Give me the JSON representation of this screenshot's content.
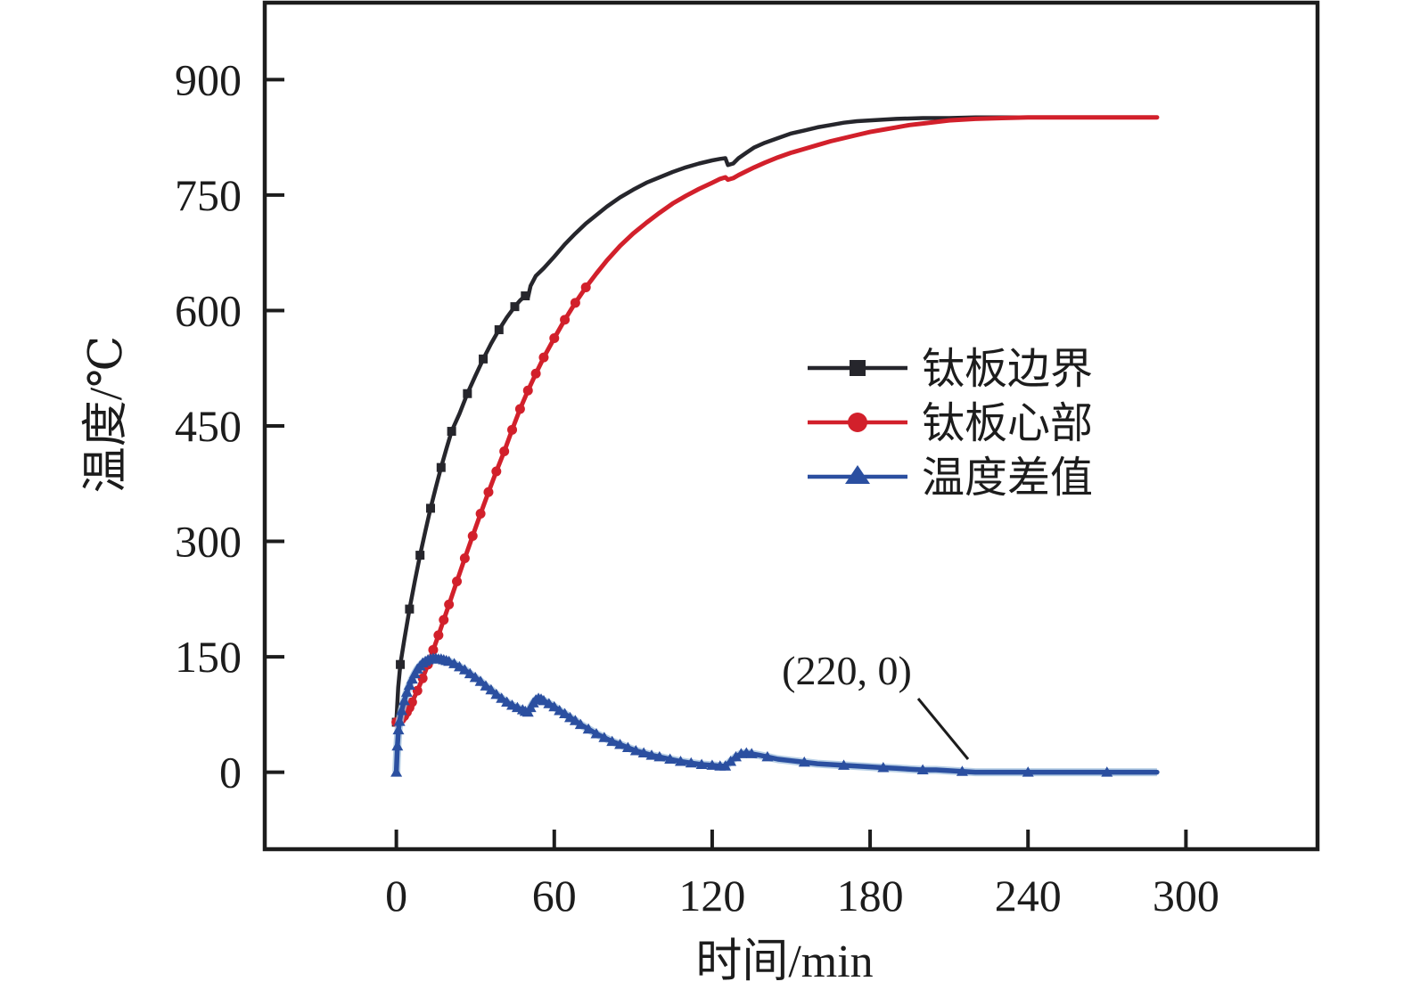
{
  "figure": {
    "background": "#ffffff",
    "text_color": "#1c1c1c"
  },
  "chart_data": {
    "type": "line",
    "title": "",
    "xlabel": "时间/min",
    "ylabel": "温度/℃",
    "xlim": [
      -50,
      350
    ],
    "ylim": [
      -100,
      1000
    ],
    "x_ticks": [
      0,
      60,
      120,
      180,
      240,
      300
    ],
    "y_ticks": [
      0,
      150,
      300,
      450,
      600,
      750,
      900
    ],
    "grid": false,
    "legend_position": "center-right",
    "annotation": {
      "label": "(220, 0)",
      "point": [
        220,
        0
      ]
    },
    "series": [
      {
        "id": "boundary-curve",
        "name": "钛板边界",
        "color": "#26262c",
        "marker": "square",
        "marker_until": 50,
        "marker_step": 2,
        "marker_step_after": 0,
        "points": [
          [
            0,
            65
          ],
          [
            0.7,
            110
          ],
          [
            1.5,
            140
          ],
          [
            3,
            172
          ],
          [
            5,
            212
          ],
          [
            7,
            248
          ],
          [
            9,
            282
          ],
          [
            11,
            313
          ],
          [
            13,
            343
          ],
          [
            15,
            370
          ],
          [
            17,
            396
          ],
          [
            19,
            420
          ],
          [
            21,
            443
          ],
          [
            24,
            466
          ],
          [
            27,
            492
          ],
          [
            30,
            515
          ],
          [
            33,
            537
          ],
          [
            36,
            557
          ],
          [
            39,
            575
          ],
          [
            42,
            591
          ],
          [
            45,
            605
          ],
          [
            47,
            613
          ],
          [
            49,
            619
          ],
          [
            50,
            617
          ],
          [
            51,
            632
          ],
          [
            53,
            645
          ],
          [
            56,
            655
          ],
          [
            60,
            670
          ],
          [
            64,
            686
          ],
          [
            68,
            700
          ],
          [
            72,
            713
          ],
          [
            76,
            724
          ],
          [
            80,
            735
          ],
          [
            85,
            747
          ],
          [
            90,
            757
          ],
          [
            95,
            766
          ],
          [
            100,
            773
          ],
          [
            105,
            780
          ],
          [
            110,
            786
          ],
          [
            115,
            791
          ],
          [
            120,
            795
          ],
          [
            123,
            797
          ],
          [
            125,
            798
          ],
          [
            126,
            789
          ],
          [
            128,
            791
          ],
          [
            130,
            798
          ],
          [
            133,
            805
          ],
          [
            136,
            812
          ],
          [
            140,
            818
          ],
          [
            145,
            824
          ],
          [
            150,
            830
          ],
          [
            155,
            834
          ],
          [
            160,
            838
          ],
          [
            165,
            841
          ],
          [
            170,
            844
          ],
          [
            175,
            846
          ],
          [
            180,
            847
          ],
          [
            185,
            848
          ],
          [
            190,
            849
          ],
          [
            200,
            850
          ],
          [
            210,
            850
          ],
          [
            220,
            851
          ],
          [
            240,
            851
          ],
          [
            260,
            851
          ],
          [
            289,
            851
          ]
        ]
      },
      {
        "id": "center-curve",
        "name": "钛板心部",
        "color": "#d2202b",
        "marker": "circle",
        "marker_until": 72,
        "marker_step": 1,
        "marker_step_after": 0,
        "points": [
          [
            0,
            65
          ],
          [
            1,
            66
          ],
          [
            2,
            69
          ],
          [
            3,
            73
          ],
          [
            4,
            78
          ],
          [
            5,
            84
          ],
          [
            6,
            91
          ],
          [
            8,
            106
          ],
          [
            10,
            122
          ],
          [
            12,
            140
          ],
          [
            14,
            159
          ],
          [
            16,
            178
          ],
          [
            18,
            198
          ],
          [
            20,
            218
          ],
          [
            23,
            248
          ],
          [
            26,
            278
          ],
          [
            29,
            307
          ],
          [
            32,
            336
          ],
          [
            35,
            364
          ],
          [
            38,
            391
          ],
          [
            41,
            417
          ],
          [
            44,
            445
          ],
          [
            47,
            472
          ],
          [
            50,
            496
          ],
          [
            53,
            518
          ],
          [
            56,
            539
          ],
          [
            60,
            564
          ],
          [
            64,
            588
          ],
          [
            68,
            610
          ],
          [
            72,
            630
          ],
          [
            76,
            648
          ],
          [
            80,
            665
          ],
          [
            85,
            684
          ],
          [
            90,
            700
          ],
          [
            95,
            714
          ],
          [
            100,
            727
          ],
          [
            105,
            739
          ],
          [
            110,
            749
          ],
          [
            115,
            758
          ],
          [
            120,
            766
          ],
          [
            123,
            771
          ],
          [
            125,
            773
          ],
          [
            126,
            770
          ],
          [
            128,
            772
          ],
          [
            130,
            776
          ],
          [
            133,
            781
          ],
          [
            136,
            786
          ],
          [
            140,
            792
          ],
          [
            145,
            799
          ],
          [
            150,
            805
          ],
          [
            155,
            810
          ],
          [
            160,
            815
          ],
          [
            165,
            820
          ],
          [
            170,
            824
          ],
          [
            175,
            828
          ],
          [
            180,
            832
          ],
          [
            185,
            835
          ],
          [
            190,
            838
          ],
          [
            195,
            841
          ],
          [
            200,
            843
          ],
          [
            205,
            845
          ],
          [
            210,
            847
          ],
          [
            215,
            848
          ],
          [
            220,
            849
          ],
          [
            230,
            850
          ],
          [
            240,
            851
          ],
          [
            260,
            851
          ],
          [
            289,
            851
          ]
        ]
      },
      {
        "id": "difference-curve",
        "name": "温度差值",
        "color": "#2b4fa0",
        "halo_color": "#a8c4e0",
        "marker": "triangle",
        "marker_until": 136,
        "marker_step": 1,
        "marker_step_after": 3,
        "points": [
          [
            0,
            0
          ],
          [
            0.4,
            34
          ],
          [
            0.8,
            55
          ],
          [
            1.2,
            66
          ],
          [
            2,
            80
          ],
          [
            3,
            93
          ],
          [
            4,
            104
          ],
          [
            5,
            113
          ],
          [
            6,
            121
          ],
          [
            7,
            128
          ],
          [
            8,
            134
          ],
          [
            9,
            138
          ],
          [
            10,
            142
          ],
          [
            11,
            144
          ],
          [
            12,
            146
          ],
          [
            13,
            147
          ],
          [
            14,
            148
          ],
          [
            15,
            148
          ],
          [
            16,
            147
          ],
          [
            17,
            147
          ],
          [
            18,
            146
          ],
          [
            19,
            145
          ],
          [
            20,
            144
          ],
          [
            22,
            141
          ],
          [
            24,
            137
          ],
          [
            26,
            133
          ],
          [
            28,
            128
          ],
          [
            30,
            123
          ],
          [
            32,
            118
          ],
          [
            34,
            112
          ],
          [
            36,
            107
          ],
          [
            38,
            101
          ],
          [
            40,
            96
          ],
          [
            42,
            91
          ],
          [
            44,
            87
          ],
          [
            46,
            84
          ],
          [
            48,
            81
          ],
          [
            49,
            79
          ],
          [
            50,
            78
          ],
          [
            51,
            84
          ],
          [
            52,
            90
          ],
          [
            53,
            94
          ],
          [
            54,
            96
          ],
          [
            55,
            95
          ],
          [
            56,
            93
          ],
          [
            58,
            89
          ],
          [
            60,
            85
          ],
          [
            62,
            80
          ],
          [
            64,
            76
          ],
          [
            66,
            71
          ],
          [
            68,
            67
          ],
          [
            70,
            62
          ],
          [
            73,
            56
          ],
          [
            76,
            50
          ],
          [
            79,
            45
          ],
          [
            82,
            40
          ],
          [
            85,
            36
          ],
          [
            88,
            32
          ],
          [
            91,
            28
          ],
          [
            94,
            25
          ],
          [
            97,
            22
          ],
          [
            100,
            20
          ],
          [
            104,
            17
          ],
          [
            108,
            14
          ],
          [
            112,
            12
          ],
          [
            116,
            10
          ],
          [
            120,
            9
          ],
          [
            123,
            8
          ],
          [
            125,
            8
          ],
          [
            127,
            14
          ],
          [
            129,
            20
          ],
          [
            131,
            24
          ],
          [
            133,
            25
          ],
          [
            135,
            24
          ],
          [
            138,
            22
          ],
          [
            141,
            20
          ],
          [
            145,
            17
          ],
          [
            150,
            15
          ],
          [
            155,
            13
          ],
          [
            160,
            11
          ],
          [
            165,
            10
          ],
          [
            170,
            9
          ],
          [
            175,
            8
          ],
          [
            180,
            7
          ],
          [
            185,
            6
          ],
          [
            190,
            5
          ],
          [
            195,
            4
          ],
          [
            200,
            3
          ],
          [
            205,
            3
          ],
          [
            210,
            2
          ],
          [
            215,
            1
          ],
          [
            220,
            0
          ],
          [
            230,
            0
          ],
          [
            240,
            0
          ],
          [
            250,
            0
          ],
          [
            260,
            0
          ],
          [
            270,
            0
          ],
          [
            280,
            0
          ],
          [
            289,
            0
          ]
        ]
      }
    ]
  }
}
